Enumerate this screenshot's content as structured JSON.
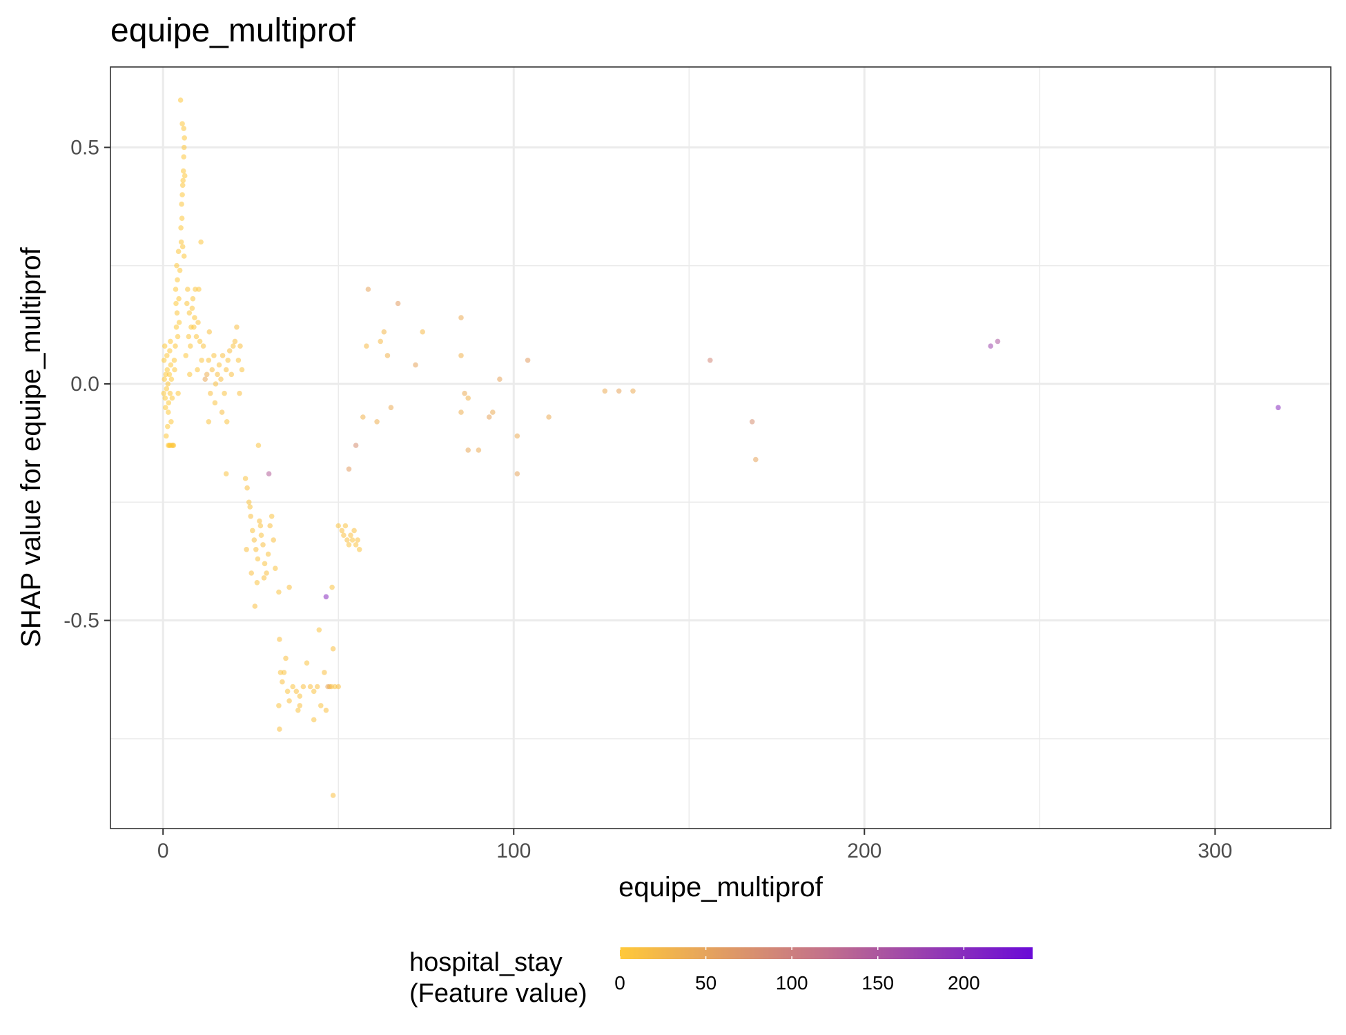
{
  "chart_data": {
    "type": "scatter",
    "title": "equipe_multiprof",
    "xlabel": "equipe_multiprof",
    "ylabel": "SHAP value for equipe_multiprof",
    "xlim": [
      -15,
      333
    ],
    "ylim": [
      -0.94,
      0.67
    ],
    "x_ticks": [
      0,
      100,
      200,
      300
    ],
    "x_tick_labels": [
      "0",
      "100",
      "200",
      "300"
    ],
    "y_ticks": [
      0.5,
      0.0,
      -0.5
    ],
    "y_tick_labels": [
      "0.5",
      "0.0",
      "-0.5"
    ],
    "grid": true,
    "legend": {
      "title_line1": "hospital_stay",
      "title_line2": "(Feature value)",
      "placement": "bottom",
      "type": "colorbar",
      "range": [
        0,
        240
      ],
      "ticks": [
        0,
        50,
        100,
        150,
        200
      ],
      "tick_labels": [
        "0",
        "50",
        "100",
        "150",
        "200"
      ],
      "color_low": "#ffc93a",
      "color_mid": "#c2708c",
      "color_high": "#6a0ad7"
    },
    "point_color_default": "#f5b942",
    "series": [
      {
        "points": [
          [
            0.2,
            -0.02,
            2
          ],
          [
            0.4,
            0.01,
            3
          ],
          [
            0.6,
            -0.03,
            2
          ],
          [
            0.8,
            0.02,
            1
          ],
          [
            1.0,
            -0.01,
            4
          ],
          [
            1.2,
            0.03,
            2
          ],
          [
            1.4,
            0.0,
            3
          ],
          [
            1.6,
            -0.04,
            1
          ],
          [
            1.8,
            0.02,
            2
          ],
          [
            2.0,
            -0.02,
            5
          ],
          [
            2.2,
            0.04,
            3
          ],
          [
            2.4,
            0.01,
            2
          ],
          [
            2.6,
            -0.03,
            4
          ],
          [
            0.3,
            0.05,
            2
          ],
          [
            0.7,
            -0.05,
            1
          ],
          [
            1.1,
            0.06,
            3
          ],
          [
            1.5,
            -0.06,
            2
          ],
          [
            1.9,
            0.07,
            4
          ],
          [
            2.3,
            -0.08,
            3
          ],
          [
            0.5,
            0.08,
            2
          ],
          [
            1.3,
            -0.09,
            2
          ],
          [
            2.1,
            0.09,
            3
          ],
          [
            0.9,
            -0.11,
            4
          ],
          [
            1.5,
            -0.13,
            3
          ],
          [
            2.0,
            -0.13,
            2
          ],
          [
            2.5,
            -0.13,
            4
          ],
          [
            3.0,
            -0.13,
            3
          ],
          [
            1.8,
            -0.13,
            2
          ],
          [
            2.8,
            -0.13,
            5
          ],
          [
            3.2,
            0.05,
            3
          ],
          [
            3.5,
            0.08,
            4
          ],
          [
            3.8,
            0.12,
            2
          ],
          [
            4.0,
            0.15,
            5
          ],
          [
            4.2,
            0.1,
            3
          ],
          [
            4.5,
            0.18,
            4
          ],
          [
            3.6,
            0.2,
            3
          ],
          [
            4.1,
            0.22,
            4
          ],
          [
            3.9,
            0.25,
            3
          ],
          [
            4.4,
            0.28,
            5
          ],
          [
            4.6,
            0.13,
            2
          ],
          [
            3.3,
            0.03,
            4
          ],
          [
            4.3,
            -0.02,
            3
          ],
          [
            3.7,
            0.17,
            2
          ],
          [
            4.8,
            0.24,
            4
          ],
          [
            5.2,
            0.3,
            5
          ],
          [
            5.4,
            0.35,
            4
          ],
          [
            5.5,
            0.4,
            3
          ],
          [
            5.6,
            0.42,
            5
          ],
          [
            5.7,
            0.43,
            4
          ],
          [
            5.8,
            0.45,
            3
          ],
          [
            5.9,
            0.48,
            4
          ],
          [
            6.0,
            0.5,
            3
          ],
          [
            5.3,
            0.38,
            5
          ],
          [
            5.1,
            0.33,
            4
          ],
          [
            6.1,
            0.52,
            4
          ],
          [
            5.5,
            0.55,
            3
          ],
          [
            5.9,
            0.54,
            5
          ],
          [
            5.0,
            0.6,
            3
          ],
          [
            6.2,
            0.44,
            4
          ],
          [
            5.6,
            0.29,
            5
          ],
          [
            6.0,
            0.27,
            4
          ],
          [
            7.0,
            0.2,
            6
          ],
          [
            7.5,
            0.15,
            5
          ],
          [
            8.0,
            0.12,
            4
          ],
          [
            8.5,
            0.18,
            6
          ],
          [
            9.0,
            0.14,
            5
          ],
          [
            7.3,
            0.1,
            6
          ],
          [
            7.8,
            0.08,
            5
          ],
          [
            8.3,
            0.16,
            7
          ],
          [
            8.8,
            0.12,
            5
          ],
          [
            9.5,
            0.1,
            6
          ],
          [
            10.0,
            0.13,
            8
          ],
          [
            10.5,
            0.09,
            6
          ],
          [
            11.0,
            0.05,
            7
          ],
          [
            7.6,
            0.02,
            6
          ],
          [
            9.2,
            0.2,
            5
          ],
          [
            10.2,
            0.2,
            7
          ],
          [
            10.8,
            0.3,
            6
          ],
          [
            6.8,
            0.17,
            5
          ],
          [
            6.5,
            0.06,
            4
          ],
          [
            9.8,
            0.03,
            6
          ],
          [
            11.5,
            0.08,
            10
          ],
          [
            12.0,
            0.01,
            45
          ],
          [
            12.5,
            0.02,
            35
          ],
          [
            13.0,
            0.05,
            10
          ],
          [
            13.5,
            -0.02,
            12
          ],
          [
            14.0,
            0.03,
            15
          ],
          [
            14.5,
            0.06,
            10
          ],
          [
            15.0,
            0.0,
            12
          ],
          [
            15.5,
            0.02,
            14
          ],
          [
            16.0,
            0.04,
            10
          ],
          [
            16.5,
            0.01,
            15
          ],
          [
            17.0,
            0.06,
            12
          ],
          [
            17.5,
            -0.02,
            10
          ],
          [
            18.0,
            0.03,
            12
          ],
          [
            18.5,
            0.05,
            10
          ],
          [
            19.0,
            0.07,
            15
          ],
          [
            19.5,
            0.02,
            12
          ],
          [
            20.0,
            0.08,
            10
          ],
          [
            20.5,
            0.09,
            12
          ],
          [
            21.0,
            0.12,
            15
          ],
          [
            21.5,
            0.05,
            10
          ],
          [
            22.0,
            0.08,
            12
          ],
          [
            22.5,
            0.03,
            10
          ],
          [
            13.2,
            0.11,
            12
          ],
          [
            14.8,
            -0.04,
            10
          ],
          [
            16.8,
            -0.06,
            15
          ],
          [
            13.0,
            -0.08,
            10
          ],
          [
            18.2,
            -0.08,
            10
          ],
          [
            21.8,
            -0.02,
            12
          ],
          [
            18.0,
            -0.19,
            10
          ],
          [
            23.5,
            -0.2,
            10
          ],
          [
            24.0,
            -0.22,
            12
          ],
          [
            24.5,
            -0.25,
            10
          ],
          [
            25.0,
            -0.28,
            12
          ],
          [
            25.5,
            -0.31,
            10
          ],
          [
            26.0,
            -0.33,
            14
          ],
          [
            26.5,
            -0.35,
            12
          ],
          [
            27.0,
            -0.37,
            10
          ],
          [
            27.5,
            -0.29,
            12
          ],
          [
            28.0,
            -0.32,
            10
          ],
          [
            28.5,
            -0.34,
            14
          ],
          [
            29.0,
            -0.38,
            10
          ],
          [
            29.5,
            -0.4,
            12
          ],
          [
            30.0,
            -0.36,
            10
          ],
          [
            30.5,
            -0.3,
            12
          ],
          [
            31.0,
            -0.28,
            10
          ],
          [
            31.5,
            -0.33,
            12
          ],
          [
            32.0,
            -0.39,
            10
          ],
          [
            26.2,
            -0.47,
            12
          ],
          [
            24.8,
            -0.26,
            10
          ],
          [
            25.2,
            -0.4,
            12
          ],
          [
            27.2,
            -0.13,
            10
          ],
          [
            26.8,
            -0.42,
            10
          ],
          [
            28.8,
            -0.41,
            12
          ],
          [
            30.2,
            -0.19,
            140
          ],
          [
            33.0,
            -0.44,
            10
          ],
          [
            36.0,
            -0.43,
            12
          ],
          [
            23.8,
            -0.35,
            12
          ],
          [
            27.8,
            -0.3,
            10
          ],
          [
            33.2,
            -0.54,
            12
          ],
          [
            33.5,
            -0.61,
            10
          ],
          [
            34.0,
            -0.63,
            12
          ],
          [
            34.5,
            -0.61,
            10
          ],
          [
            35.0,
            -0.58,
            12
          ],
          [
            35.5,
            -0.65,
            10
          ],
          [
            36.0,
            -0.67,
            12
          ],
          [
            37.0,
            -0.64,
            10
          ],
          [
            38.0,
            -0.65,
            12
          ],
          [
            39.0,
            -0.66,
            10
          ],
          [
            40.0,
            -0.64,
            12
          ],
          [
            41.0,
            -0.59,
            10
          ],
          [
            42.0,
            -0.64,
            12
          ],
          [
            43.0,
            -0.65,
            10
          ],
          [
            44.0,
            -0.64,
            12
          ],
          [
            45.0,
            -0.68,
            10
          ],
          [
            46.0,
            -0.61,
            12
          ],
          [
            47.0,
            -0.64,
            45
          ],
          [
            47.5,
            -0.64,
            40
          ],
          [
            48.0,
            -0.64,
            12
          ],
          [
            49.0,
            -0.64,
            10
          ],
          [
            50.0,
            -0.64,
            12
          ],
          [
            33.0,
            -0.68,
            10
          ],
          [
            33.2,
            -0.73,
            12
          ],
          [
            38.5,
            -0.69,
            10
          ],
          [
            39.0,
            -0.68,
            12
          ],
          [
            43.0,
            -0.71,
            10
          ],
          [
            46.5,
            -0.69,
            12
          ],
          [
            44.5,
            -0.52,
            10
          ],
          [
            48.5,
            -0.56,
            12
          ],
          [
            48.2,
            -0.43,
            10
          ],
          [
            48.5,
            -0.87,
            12
          ],
          [
            46.5,
            -0.45,
            200
          ],
          [
            50.0,
            -0.3,
            10
          ],
          [
            51.0,
            -0.31,
            12
          ],
          [
            52.0,
            -0.3,
            10
          ],
          [
            52.5,
            -0.33,
            12
          ],
          [
            53.0,
            -0.34,
            10
          ],
          [
            53.5,
            -0.32,
            12
          ],
          [
            54.0,
            -0.33,
            10
          ],
          [
            54.5,
            -0.31,
            12
          ],
          [
            55.0,
            -0.34,
            10
          ],
          [
            55.5,
            -0.33,
            12
          ],
          [
            56.0,
            -0.35,
            10
          ],
          [
            51.5,
            -0.32,
            12
          ],
          [
            53.0,
            -0.18,
            60
          ],
          [
            55.0,
            -0.13,
            80
          ],
          [
            57.0,
            -0.07,
            30
          ],
          [
            58.0,
            0.08,
            20
          ],
          [
            58.5,
            0.2,
            50
          ],
          [
            61.0,
            -0.08,
            35
          ],
          [
            62.0,
            0.09,
            20
          ],
          [
            63.0,
            0.11,
            25
          ],
          [
            64.0,
            0.06,
            30
          ],
          [
            65.0,
            -0.05,
            40
          ],
          [
            67.0,
            0.17,
            60
          ],
          [
            72.0,
            0.04,
            50
          ],
          [
            74.0,
            0.11,
            20
          ],
          [
            85.0,
            0.14,
            40
          ],
          [
            85.0,
            -0.06,
            35
          ],
          [
            85.0,
            0.06,
            30
          ],
          [
            86.0,
            -0.02,
            40
          ],
          [
            87.0,
            -0.03,
            30
          ],
          [
            87.0,
            -0.14,
            45
          ],
          [
            90.0,
            -0.14,
            40
          ],
          [
            93.0,
            -0.07,
            50
          ],
          [
            94.0,
            -0.06,
            40
          ],
          [
            96.0,
            0.01,
            50
          ],
          [
            101.0,
            -0.11,
            40
          ],
          [
            101.0,
            -0.19,
            50
          ],
          [
            104.0,
            0.05,
            60
          ],
          [
            110.0,
            -0.07,
            40
          ],
          [
            126.0,
            -0.015,
            40
          ],
          [
            130.0,
            -0.015,
            50
          ],
          [
            134.0,
            -0.015,
            40
          ],
          [
            156.0,
            0.05,
            90
          ],
          [
            168.0,
            -0.08,
            80
          ],
          [
            169.0,
            -0.16,
            50
          ],
          [
            236.0,
            0.08,
            170
          ],
          [
            238.0,
            0.09,
            150
          ],
          [
            318.0,
            -0.05,
            200
          ]
        ]
      }
    ]
  }
}
